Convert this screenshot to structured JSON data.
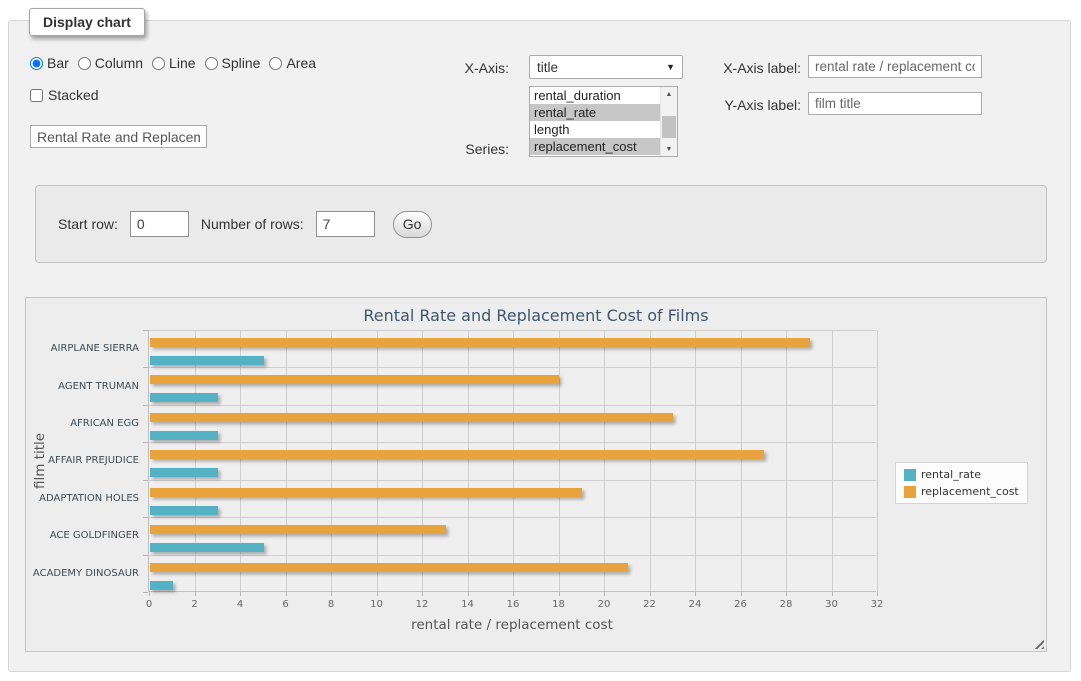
{
  "panel": {
    "legend": "Display chart"
  },
  "controls": {
    "chart_type": {
      "options": [
        "Bar",
        "Column",
        "Line",
        "Spline",
        "Area"
      ],
      "selected": "Bar"
    },
    "stacked": {
      "label": "Stacked",
      "checked": false
    },
    "chart_title_input": {
      "value": "Rental Rate and Replacement Cost of Films"
    },
    "x_axis": {
      "label": "X-Axis:",
      "value": "title"
    },
    "series": {
      "label": "Series:",
      "options": [
        "rental_duration",
        "rental_rate",
        "length",
        "replacement_cost"
      ],
      "selected": [
        "rental_rate",
        "replacement_cost"
      ]
    },
    "x_axis_label": {
      "label": "X-Axis label:",
      "value": "rental rate / replacement cost"
    },
    "y_axis_label": {
      "label": "Y-Axis label:",
      "value": "film title"
    }
  },
  "row_controls": {
    "start_row": {
      "label": "Start row:",
      "value": "0"
    },
    "num_rows": {
      "label": "Number of rows:",
      "value": "7"
    },
    "go_button": "Go"
  },
  "chart_data": {
    "type": "bar",
    "title": "Rental Rate and Replacement Cost of Films",
    "categories": [
      "AIRPLANE SIERRA",
      "AGENT TRUMAN",
      "AFRICAN EGG",
      "AFFAIR PREJUDICE",
      "ADAPTATION HOLES",
      "ACE GOLDFINGER",
      "ACADEMY DINOSAUR"
    ],
    "series": [
      {
        "name": "rental_rate",
        "color": "#55B1C4",
        "values": [
          4.99,
          2.99,
          2.99,
          2.99,
          2.99,
          4.99,
          0.99
        ]
      },
      {
        "name": "replacement_cost",
        "color": "#E9A33D",
        "values": [
          28.99,
          17.99,
          22.99,
          26.99,
          18.99,
          12.99,
          20.99
        ]
      }
    ],
    "bar_display_order": [
      "replacement_cost",
      "rental_rate"
    ],
    "xlabel": "rental rate / replacement cost",
    "ylabel": "film title",
    "xlim": [
      0,
      32
    ],
    "tick_step": 2,
    "grid": true,
    "legend_position": "right-middle"
  }
}
